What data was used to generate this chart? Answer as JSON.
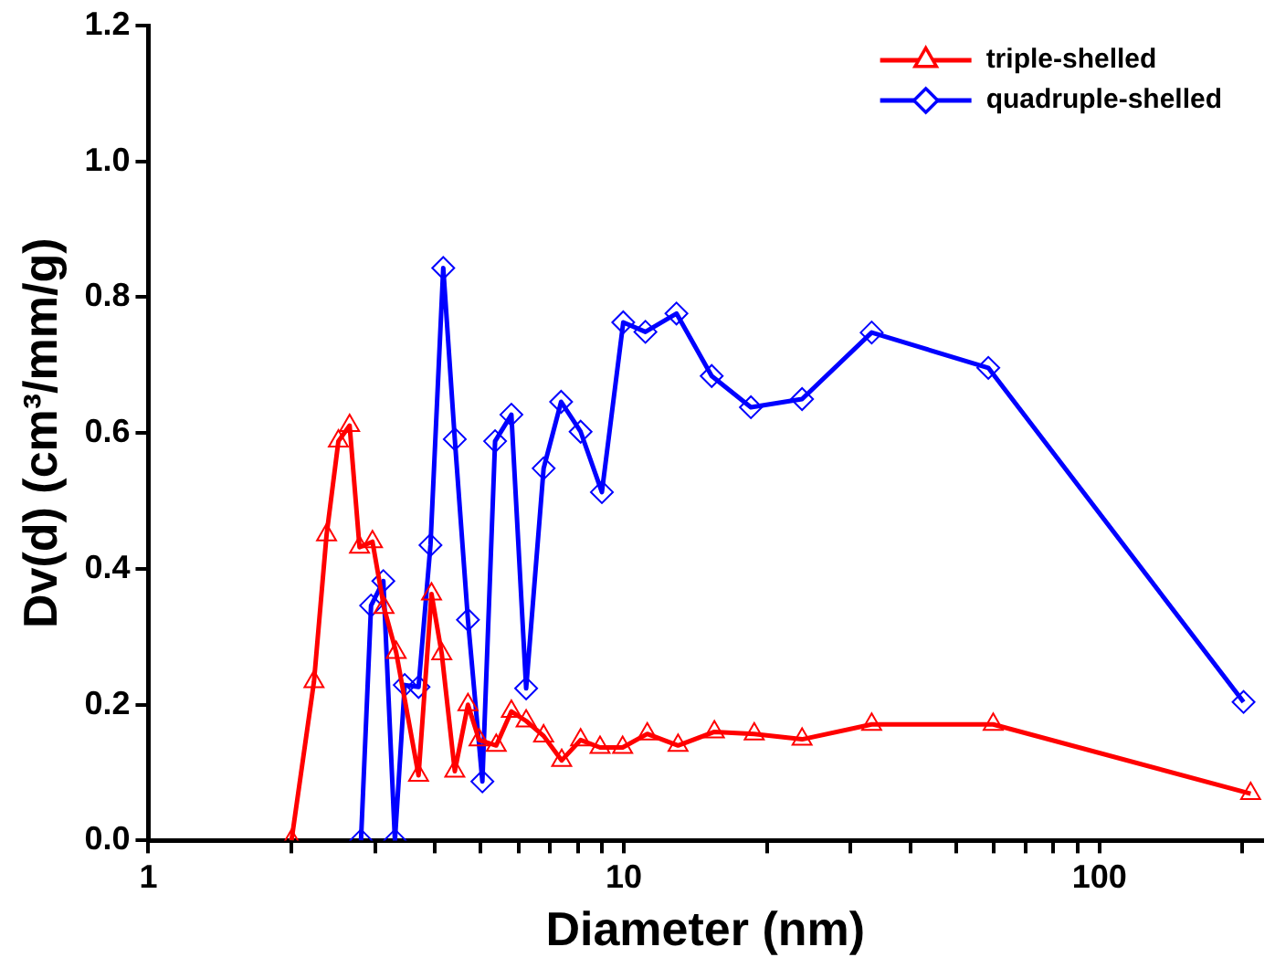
{
  "chart_data": {
    "type": "line",
    "xlabel": "Diameter (nm)",
    "ylabel": "Dv(d) (cm³/mm/g)",
    "log": "x",
    "xlim": [
      1,
      220
    ],
    "xticks": [
      1,
      {
        "value": 2,
        "label": null
      },
      {
        "value": 3,
        "label": null
      },
      {
        "value": 4,
        "label": null
      },
      {
        "value": 5,
        "label": null
      },
      {
        "value": 6,
        "label": null
      },
      {
        "value": 7,
        "label": null
      },
      {
        "value": 8,
        "label": null
      },
      {
        "value": 9,
        "label": null
      },
      10,
      {
        "value": 20,
        "label": null
      },
      {
        "value": 30,
        "label": null
      },
      {
        "value": 40,
        "label": null
      },
      {
        "value": 50,
        "label": null
      },
      {
        "value": 60,
        "label": null
      },
      {
        "value": 70,
        "label": null
      },
      {
        "value": 80,
        "label": null
      },
      {
        "value": 90,
        "label": null
      },
      100,
      {
        "value": 200,
        "label": null
      }
    ],
    "ylim": [
      0,
      1.2
    ],
    "yticks": [
      {
        "value": 0,
        "label": "0.0"
      },
      {
        "value": 0.2,
        "label": "0.2"
      },
      {
        "value": 0.4,
        "label": "0.4"
      },
      {
        "value": 0.6,
        "label": "0.6"
      },
      {
        "value": 0.8,
        "label": "0.8"
      },
      {
        "value": 1,
        "label": "1.0"
      },
      {
        "value": 1.2,
        "label": "1.2"
      }
    ],
    "grid": false,
    "legend": "top right",
    "line_style": "solid",
    "series": [
      {
        "name": "triple-shelled",
        "color": "#ff0000",
        "marker": "triangle",
        "x": [
          2.0,
          2.23,
          2.37,
          2.51,
          2.65,
          2.78,
          2.96,
          3.13,
          3.32,
          3.7,
          3.94,
          4.14,
          4.41,
          4.7,
          4.96,
          5.39,
          5.8,
          6.23,
          6.78,
          7.4,
          8.11,
          8.91,
          9.94,
          11.2,
          13.0,
          15.5,
          18.8,
          23.7,
          33.2,
          59.8,
          208
        ],
        "values": [
          0,
          0.234,
          0.45,
          0.588,
          0.611,
          0.432,
          0.44,
          0.343,
          0.277,
          0.096,
          0.363,
          0.275,
          0.102,
          0.2,
          0.148,
          0.14,
          0.19,
          0.176,
          0.154,
          0.118,
          0.148,
          0.137,
          0.137,
          0.157,
          0.14,
          0.16,
          0.157,
          0.149,
          0.171,
          0.171,
          0.069
        ]
      },
      {
        "name": "quadruple-shelled",
        "color": "#0000ff",
        "marker": "diamond",
        "x": [
          2.8,
          2.94,
          3.12,
          3.3,
          3.46,
          3.7,
          3.92,
          4.17,
          4.41,
          4.7,
          5.04,
          5.36,
          5.8,
          6.23,
          6.78,
          7.38,
          8.11,
          8.99,
          9.97,
          11.1,
          12.9,
          15.3,
          18.5,
          23.7,
          33.2,
          58.4,
          201
        ],
        "values": [
          0,
          0.346,
          0.382,
          0,
          0.229,
          0.226,
          0.435,
          0.843,
          0.591,
          0.325,
          0.087,
          0.588,
          0.627,
          0.224,
          0.548,
          0.646,
          0.602,
          0.513,
          0.763,
          0.749,
          0.776,
          0.684,
          0.638,
          0.65,
          0.748,
          0.696,
          0.204
        ]
      }
    ]
  }
}
